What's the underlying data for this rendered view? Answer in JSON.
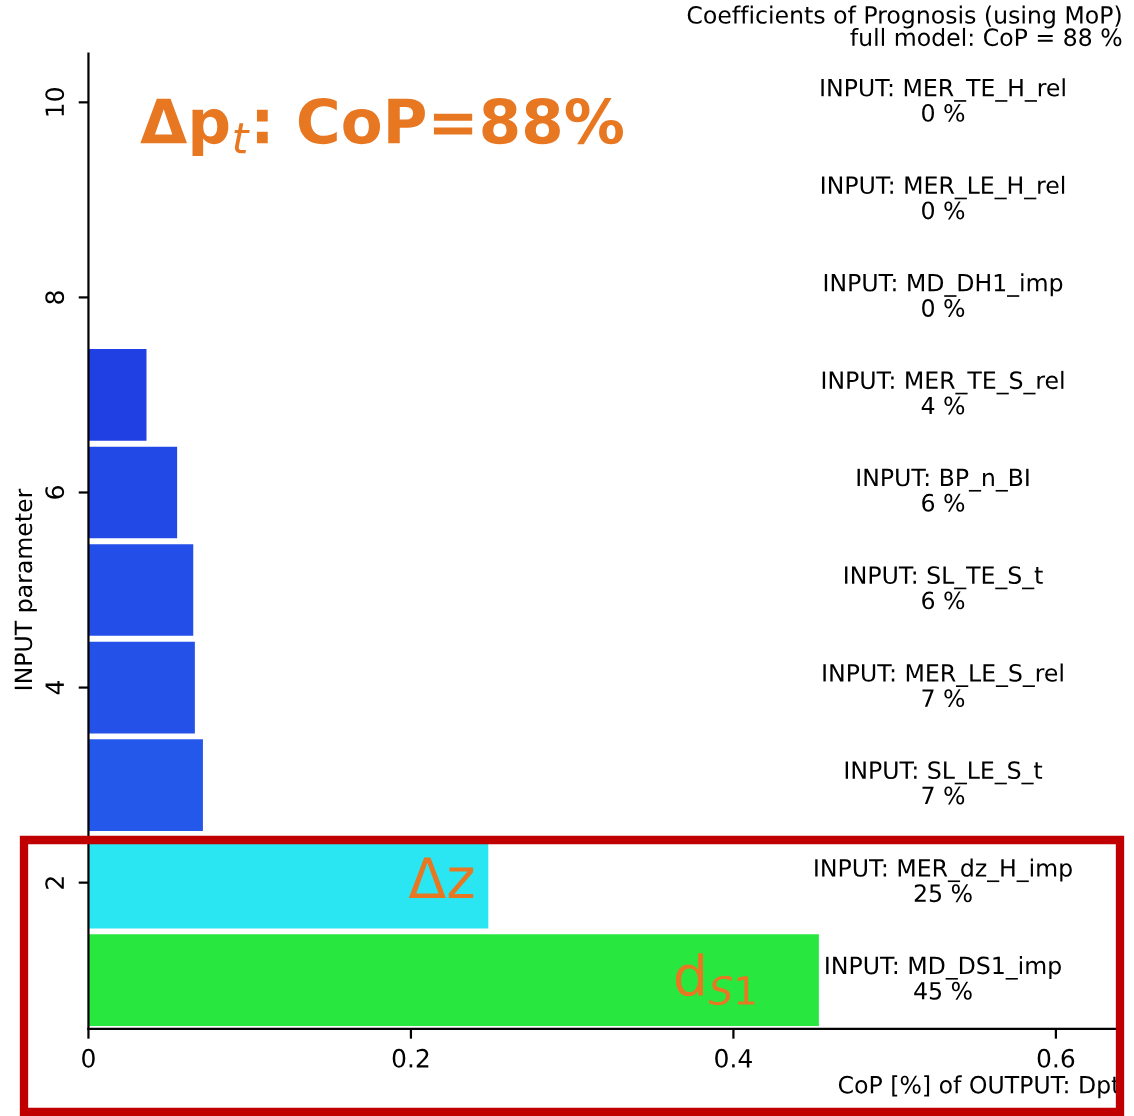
{
  "chart_data": {
    "type": "bar",
    "orientation": "horizontal",
    "title": "Coefficients of Prognosis (using MoP)",
    "subtitle": "full model: CoP = 88 %",
    "xlabel": "CoP [%] of OUTPUT: Dpt",
    "ylabel": "INPUT parameter",
    "x": [
      1,
      2,
      3,
      4,
      5,
      6,
      7,
      8,
      9,
      10
    ],
    "values": [
      0.453,
      0.248,
      0.071,
      0.066,
      0.065,
      0.055,
      0.036,
      0,
      0,
      0
    ],
    "colors": [
      "#28e840",
      "#2ae6f2",
      "#2458ea",
      "#2452e8",
      "#244ee8",
      "#2248e6",
      "#2040e4",
      "#2040e4",
      "#2040e4",
      "#2040e4"
    ],
    "xlim": [
      0,
      0.64
    ],
    "xticks": [
      0,
      0.2,
      0.4,
      0.6
    ],
    "ylim": [
      0.5,
      10.5
    ],
    "yticks": [
      2,
      4,
      6,
      8,
      10
    ],
    "grid": false,
    "legend": false,
    "annotations": [
      "Δp$_{t}$: CoP=88%",
      "Δz",
      "d$_{S1}$",
      "INPUT: MD_DS1_imp\n45 %",
      "INPUT: MER_dz_H_imp\n25 %",
      "INPUT: SL_LE_S_t\n7 %",
      "INPUT: MER_LE_S_rel\n7 %",
      "INPUT: SL_TE_S_t\n6 %",
      "INPUT: BP_n_BI\n6 %",
      "INPUT: MER_TE_S_rel\n4 %",
      "INPUT: MD_DH1_imp\n0 %",
      "INPUT: MER_LE_H_rel\n0 %",
      "INPUT: MER_TE_H_rel\n0 %"
    ]
  }
}
